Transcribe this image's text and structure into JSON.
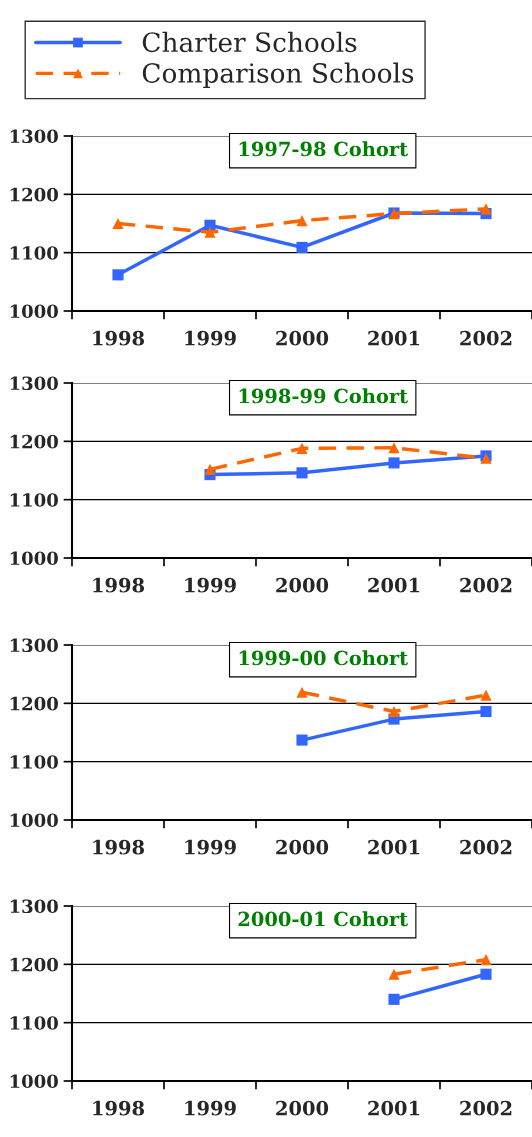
{
  "chart_data": [
    {
      "type": "line",
      "title": "1997-98 Cohort",
      "categories": [
        "1998",
        "1999",
        "2000",
        "2001",
        "2002"
      ],
      "ylim": [
        1000,
        1300
      ],
      "yticks": [
        1000,
        1100,
        1200,
        1300
      ],
      "grid": "y",
      "legend": "top left",
      "series": [
        {
          "name": "Charter Schools",
          "color": "#3366ff",
          "marker": "square",
          "line_style": "solid",
          "values": [
            1062,
            1147,
            1109,
            1168,
            1167
          ]
        },
        {
          "name": "Comparison Schools",
          "color": "#ff6600",
          "marker": "triangle",
          "line_style": "dashed",
          "values": [
            1150,
            1135,
            1155,
            1167,
            1175
          ]
        }
      ]
    },
    {
      "type": "line",
      "title": "1998-99 Cohort",
      "categories": [
        "1998",
        "1999",
        "2000",
        "2001",
        "2002"
      ],
      "ylim": [
        1000,
        1300
      ],
      "yticks": [
        1000,
        1100,
        1200,
        1300
      ],
      "grid": "y",
      "series": [
        {
          "color": "#3366ff",
          "marker": "square",
          "line_style": "solid",
          "values": [
            null,
            1143,
            1146,
            1163,
            1175
          ]
        },
        {
          "color": "#ff6600",
          "marker": "triangle",
          "line_style": "dashed",
          "values": [
            null,
            1152,
            1188,
            1189,
            1171
          ]
        }
      ]
    },
    {
      "type": "line",
      "title": "1999-00 Cohort",
      "categories": [
        "1998",
        "1999",
        "2000",
        "2001",
        "2002"
      ],
      "ylim": [
        1000,
        1300
      ],
      "yticks": [
        1000,
        1100,
        1200,
        1300
      ],
      "grid": "y",
      "series": [
        {
          "color": "#3366ff",
          "marker": "square",
          "line_style": "solid",
          "values": [
            null,
            null,
            1137,
            1173,
            1186
          ]
        },
        {
          "color": "#ff6600",
          "marker": "triangle",
          "line_style": "dashed",
          "values": [
            null,
            null,
            1219,
            1186,
            1214
          ]
        }
      ]
    },
    {
      "type": "line",
      "title": "2000-01 Cohort",
      "categories": [
        "1998",
        "1999",
        "2000",
        "2001",
        "2002"
      ],
      "ylim": [
        1000,
        1300
      ],
      "yticks": [
        1000,
        1100,
        1200,
        1300
      ],
      "grid": "y",
      "series": [
        {
          "color": "#3366ff",
          "marker": "square",
          "line_style": "solid",
          "values": [
            null,
            null,
            null,
            1140,
            1183
          ]
        },
        {
          "color": "#ff6600",
          "marker": "triangle",
          "line_style": "dashed",
          "values": [
            null,
            null,
            null,
            1183,
            1208
          ]
        }
      ]
    }
  ]
}
